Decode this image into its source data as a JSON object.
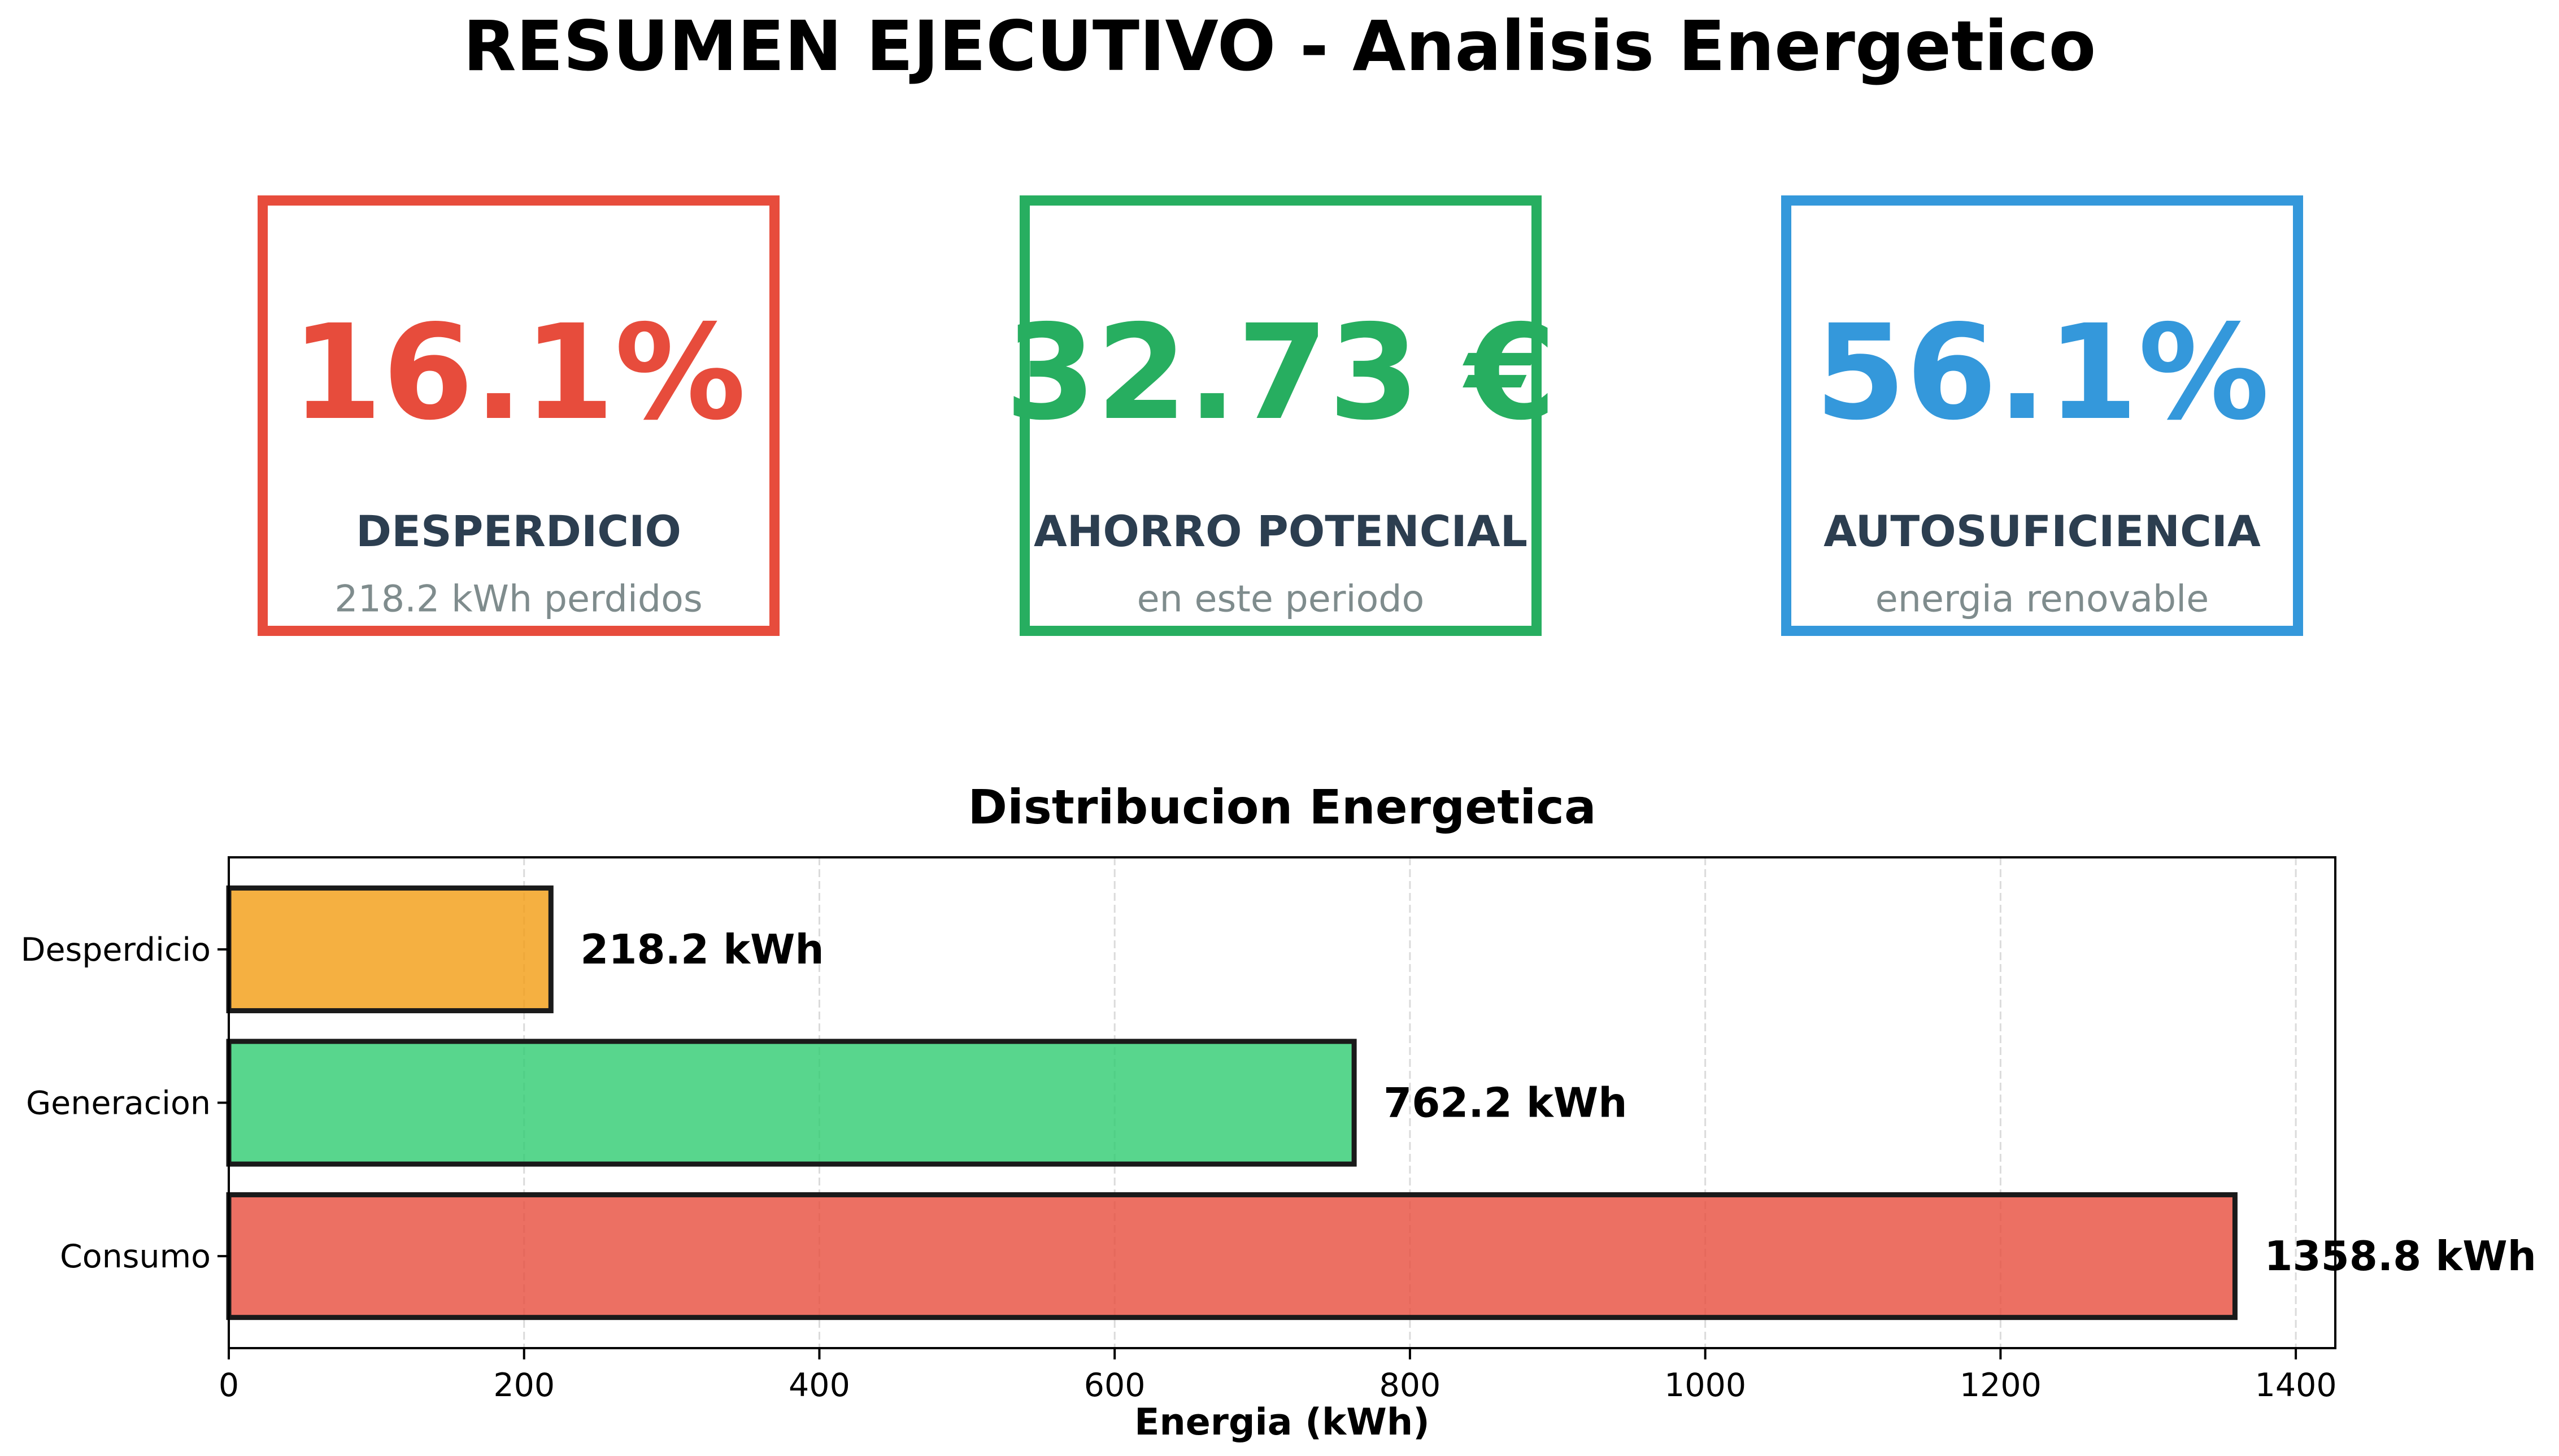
{
  "title": "RESUMEN EJECUTIVO - Analisis Energetico",
  "kpis": [
    {
      "value": "16.1%",
      "label": "DESPERDICIO",
      "sub": "218.2 kWh perdidos",
      "color": "#e74c3c"
    },
    {
      "value": "32.73 €",
      "label": "AHORRO POTENCIAL",
      "sub": "en este periodo",
      "color": "#27ae60"
    },
    {
      "value": "56.1%",
      "label": "AUTOSUFICIENCIA",
      "sub": "energia renovable",
      "color": "#3498db"
    }
  ],
  "chart_data": {
    "type": "bar",
    "orientation": "horizontal",
    "title": "Distribucion Energetica",
    "xlabel": "Energia (kWh)",
    "ylabel": "",
    "categories": [
      "Consumo",
      "Generacion",
      "Desperdicio"
    ],
    "values": [
      1358.8,
      762.2,
      218.2
    ],
    "value_labels": [
      "1358.8 kWh",
      "762.2 kWh",
      "218.2 kWh"
    ],
    "colors": [
      "#e74c3c",
      "#2ecc71",
      "#f39c12"
    ],
    "xlim": [
      0,
      1426.74
    ],
    "xticks": [
      0,
      200,
      400,
      600,
      800,
      1000,
      1200,
      1400
    ],
    "grid": "x-dashed"
  }
}
